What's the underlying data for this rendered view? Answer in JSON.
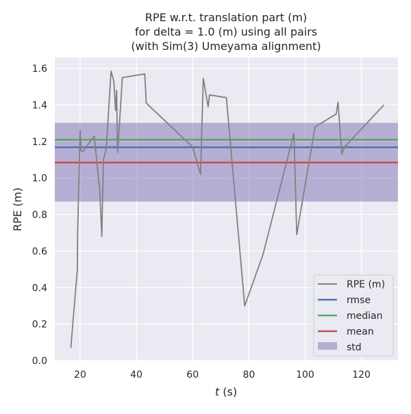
{
  "chart_data": {
    "type": "line",
    "title_lines": [
      "RPE w.r.t. translation part (m)",
      "for delta = 1.0 (m) using all pairs",
      "(with Sim(3) Umeyama alignment)"
    ],
    "xlabel_italic": "t",
    "xlabel_rest": " (s)",
    "ylabel": "RPE (m)",
    "xlim": [
      11,
      133
    ],
    "ylim": [
      0.0,
      1.66
    ],
    "xticks": [
      20,
      40,
      60,
      80,
      100,
      120
    ],
    "xtick_labels": [
      "20",
      "40",
      "60",
      "80",
      "100",
      "120"
    ],
    "yticks": [
      0.0,
      0.2,
      0.4,
      0.6,
      0.8,
      1.0,
      1.2,
      1.4,
      1.6
    ],
    "ytick_labels": [
      "0.0",
      "0.2",
      "0.4",
      "0.6",
      "0.8",
      "1.0",
      "1.2",
      "1.4",
      "1.6"
    ],
    "grid": true,
    "legend_position": "bottom-right",
    "series": [
      {
        "name": "RPE (m)",
        "color": "#808080",
        "x": [
          16.7,
          17.5,
          19.0,
          19.1,
          20.0,
          20.3,
          21.0,
          25.0,
          27.0,
          27.7,
          28.3,
          29.3,
          31.0,
          32.0,
          32.6,
          33.0,
          33.3,
          33.6,
          35.0,
          43.0,
          43.5,
          60.0,
          62.8,
          63.8,
          65.5,
          66.0,
          72.0,
          78.5,
          85.0,
          96.0,
          97.0,
          103.5,
          111.0,
          111.7,
          113.0,
          114.0,
          128.0
        ],
        "y": [
          0.07,
          0.22,
          0.5,
          0.7,
          1.26,
          1.15,
          1.145,
          1.23,
          0.93,
          0.68,
          1.1,
          1.16,
          1.585,
          1.53,
          1.37,
          1.48,
          1.14,
          1.2,
          1.55,
          1.57,
          1.41,
          1.17,
          1.02,
          1.545,
          1.39,
          1.455,
          1.44,
          0.3,
          0.58,
          1.245,
          0.69,
          1.28,
          1.35,
          1.415,
          1.13,
          1.17,
          1.4
        ]
      },
      {
        "name": "rmse",
        "color": "#4c72b0",
        "value": 1.168
      },
      {
        "name": "median",
        "color": "#55a868",
        "value": 1.21
      },
      {
        "name": "mean",
        "color": "#c44e52",
        "value": 1.085
      }
    ],
    "std_band": {
      "name": "std",
      "color": "#8172b2",
      "low": 0.871,
      "high": 1.302
    }
  }
}
